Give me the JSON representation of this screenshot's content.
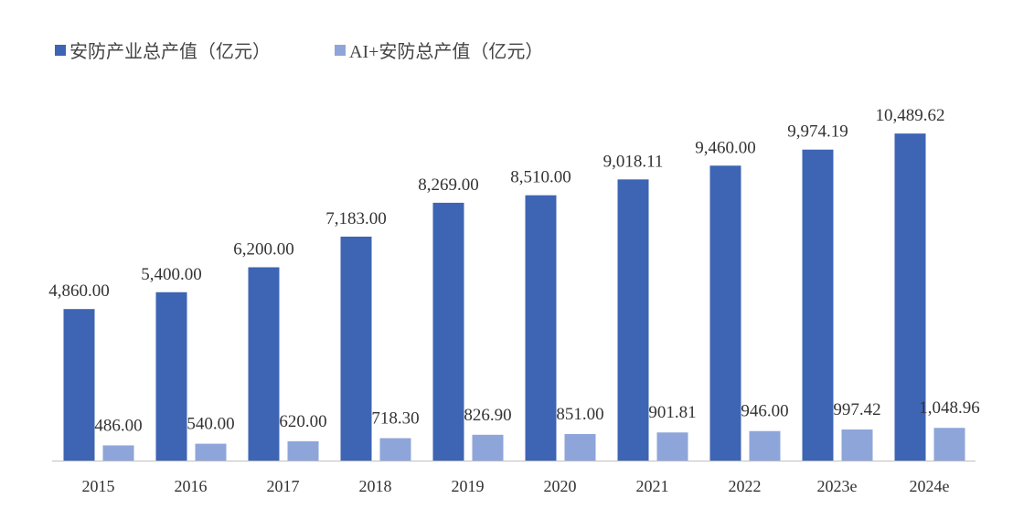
{
  "chart_data": {
    "type": "bar",
    "title": "",
    "xlabel": "",
    "ylabel": "",
    "ylim": [
      0,
      12000
    ],
    "grid": false,
    "legend_position": "top-left",
    "categories": [
      "2015",
      "2016",
      "2017",
      "2018",
      "2019",
      "2020",
      "2021",
      "2022",
      "2023e",
      "2024e"
    ],
    "series": [
      {
        "name": "安防产业总产值（亿元）",
        "color": "#3E64B4",
        "values": [
          4860.0,
          5400.0,
          6200.0,
          7183.0,
          8269.0,
          8510.0,
          9018.11,
          9460.0,
          9974.19,
          10489.62
        ],
        "labels": [
          "4,860.00",
          "5,400.00",
          "6,200.00",
          "7,183.00",
          "8,269.00",
          "8,510.00",
          "9,018.11",
          "9,460.00",
          "9,974.19",
          "10,489.62"
        ]
      },
      {
        "name": "AI+安防总产值（亿元）",
        "color": "#8EA5DA",
        "values": [
          486.0,
          540.0,
          620.0,
          718.3,
          826.9,
          851.0,
          901.81,
          946.0,
          997.42,
          1048.96
        ],
        "labels": [
          "486.00",
          "540.00",
          "620.00",
          "718.30",
          "826.90",
          "851.00",
          "901.81",
          "946.00",
          "997.42",
          "1,048.96"
        ]
      }
    ]
  }
}
